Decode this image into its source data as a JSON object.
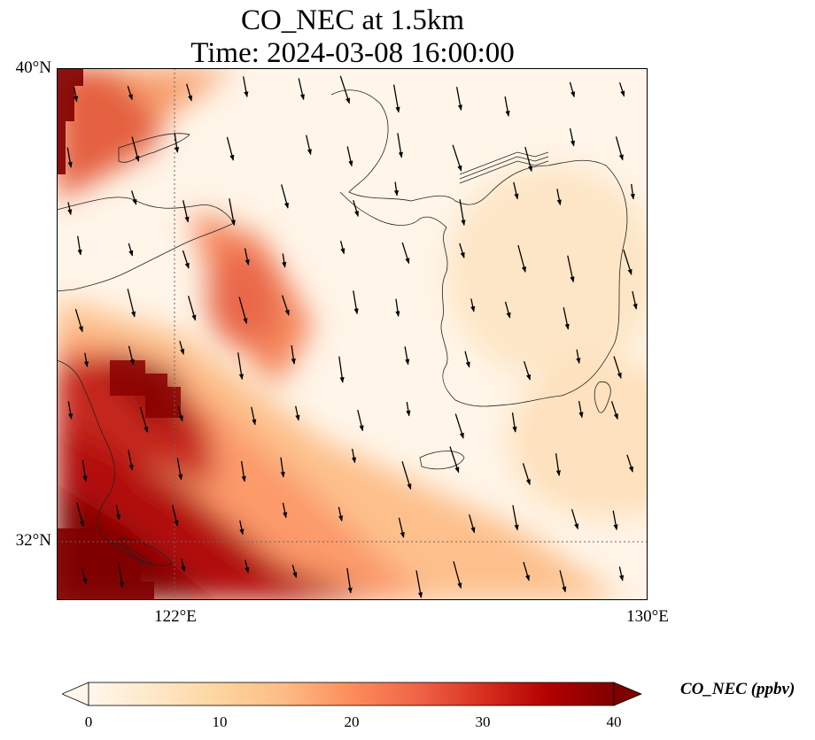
{
  "title_line1": "CO_NEC at 1.5km",
  "title_line2": "Time: 2024-03-08 16:00:00",
  "lat_labels": [
    "40°N",
    "32°N"
  ],
  "lon_labels": [
    "122°E",
    "130°E"
  ],
  "map": {
    "lon_range": [
      120,
      130
    ],
    "lat_range": [
      31,
      40
    ],
    "gridlines": {
      "lon": [
        122
      ],
      "lat": [
        32
      ]
    },
    "wind_arrows": "dense southward (north-to-south) wind vectors"
  },
  "colorbar": {
    "label": "CO_NEC (ppbv)",
    "ticks": [
      "0",
      "10",
      "20",
      "30",
      "40"
    ],
    "min": 0,
    "max": 40,
    "extend": "both",
    "colormap": "OrRd",
    "colors": [
      "#fff7ec",
      "#fee8c8",
      "#fdd49e",
      "#fdbb84",
      "#fc8d59",
      "#ef6548",
      "#d7301f",
      "#b30000",
      "#7f0000"
    ]
  }
}
